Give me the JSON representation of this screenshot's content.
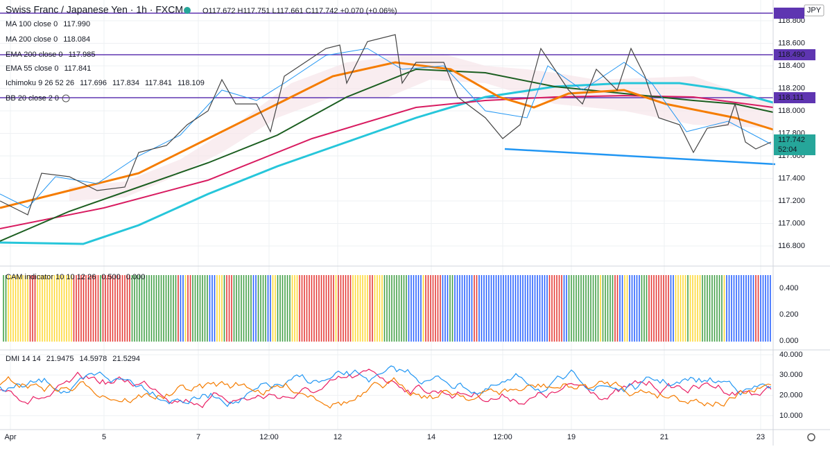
{
  "header": {
    "symbol": "Swiss Franc / Japanese Yen · 1h · FXCM",
    "ohlc": "O117.672 H117.751 L117.661 C117.742 +0.070 (+0.06%)"
  },
  "indicators": [
    {
      "name": "MA 100 close 0",
      "values": [
        {
          "text": "117.990",
          "color": "#1b5e20"
        }
      ]
    },
    {
      "name": "MA 200 close 0",
      "values": [
        {
          "text": "118.084",
          "color": "#26c6da"
        }
      ]
    },
    {
      "name": "EMA 200 close 0",
      "values": [
        {
          "text": "117.985",
          "color": "#d81b60"
        }
      ]
    },
    {
      "name": "EMA 55 close 0",
      "values": [
        {
          "text": "117.841",
          "color": "#f57c00"
        }
      ]
    },
    {
      "name": "Ichimoku 9 26 52 26",
      "values": [
        {
          "text": "117.696",
          "color": "#2196f3"
        },
        {
          "text": "117.834",
          "color": "#880e4f"
        },
        {
          "text": "117.841",
          "color": "#388e3c"
        },
        {
          "text": "118.109",
          "color": "#b71c1c"
        }
      ]
    },
    {
      "name": "BB 20 close 2 0",
      "values": []
    }
  ],
  "currency": "JPY",
  "price_axis": [
    "118.800",
    "118.600",
    "118.400",
    "118.200",
    "118.000",
    "117.800",
    "117.600",
    "117.400",
    "117.200",
    "117.000",
    "116.800"
  ],
  "price_tags": [
    {
      "text": "118.490",
      "color": "#5e35b1"
    },
    {
      "text": "118.111",
      "color": "#5e35b1"
    },
    {
      "text": "117.742",
      "color": "#26a69a",
      "sub": "52:04"
    }
  ],
  "cam": {
    "name": "CAM indicator 10 10 12 26",
    "values": [
      {
        "text": "0.500",
        "color": "#1e88e5"
      },
      {
        "text": "0.000",
        "color": "#26c6da"
      }
    ],
    "axis": [
      "0.400",
      "0.200",
      "0.000"
    ]
  },
  "dmi": {
    "name": "DMI 14 14",
    "values": [
      {
        "text": "21.9475",
        "color": "#e91e63"
      },
      {
        "text": "14.5978",
        "color": "#2196f3"
      },
      {
        "text": "21.5294",
        "color": "#f57c00"
      }
    ],
    "axis": [
      "40.000",
      "30.000",
      "20.000",
      "10.000"
    ]
  },
  "time_axis": [
    "Apr",
    "5",
    "7",
    "12:00",
    "12",
    "14",
    "12:00",
    "19",
    "21",
    "23"
  ]
}
